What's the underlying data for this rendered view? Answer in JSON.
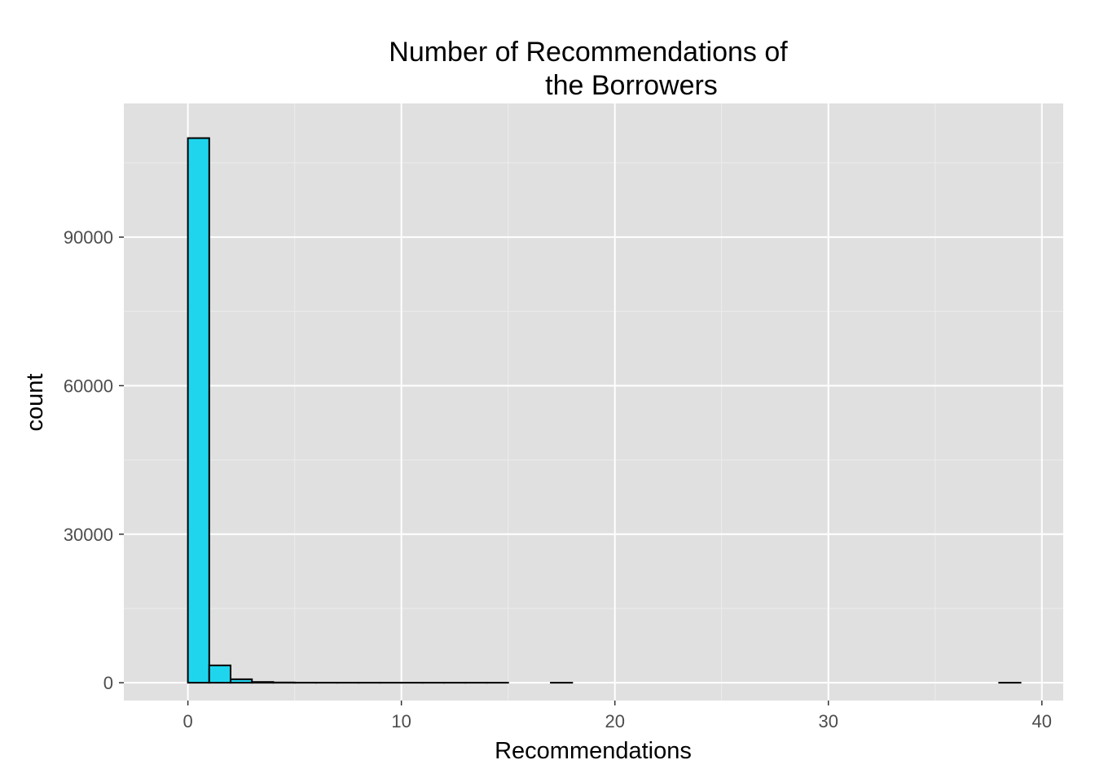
{
  "chart_data": {
    "type": "bar",
    "title_lines": [
      "Number of Recommendations of",
      "the Borrowers"
    ],
    "xlabel": "Recommendations",
    "ylabel": "count",
    "xlim": [
      -3,
      41
    ],
    "ylim": [
      -3600,
      117000
    ],
    "x_ticks": [
      0,
      10,
      20,
      30,
      40
    ],
    "x_tick_labels": [
      "0",
      "10",
      "20",
      "30",
      "40"
    ],
    "y_ticks": [
      0,
      30000,
      60000,
      90000
    ],
    "y_tick_labels": [
      "0",
      "30000",
      "60000",
      "90000"
    ],
    "bin_width": 1,
    "bin_starts": [
      -1,
      0,
      1,
      2,
      3,
      4,
      5,
      6,
      7,
      8,
      9,
      10,
      11,
      12,
      13,
      14,
      15,
      16,
      17,
      18,
      19,
      20,
      21,
      22,
      23,
      24,
      25,
      26,
      27,
      28,
      29,
      30,
      31,
      32,
      33,
      34,
      35,
      36,
      37,
      38,
      39
    ],
    "counts": [
      0,
      110000,
      3500,
      700,
      150,
      50,
      20,
      10,
      8,
      5,
      3,
      2,
      1,
      1,
      1,
      1,
      0,
      0,
      1,
      0,
      0,
      0,
      0,
      0,
      0,
      0,
      0,
      0,
      0,
      0,
      0,
      0,
      0,
      0,
      0,
      0,
      0,
      0,
      0,
      1,
      0
    ],
    "grid": true,
    "colors": {
      "bar_fill": "#1fd5ee",
      "bar_stroke": "#000000",
      "panel_background": "#e0e0e0",
      "grid_major": "#ffffff",
      "grid_minor": "#ececec",
      "tick_label": "#4d4d4d"
    }
  }
}
